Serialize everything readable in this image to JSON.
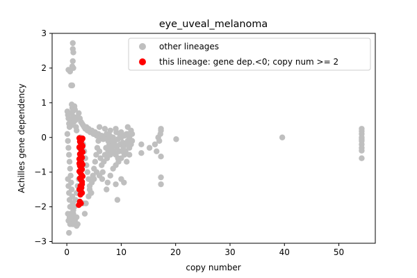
{
  "chart_data": {
    "type": "scatter",
    "title": "eye_uveal_melanoma",
    "xlabel": "copy number",
    "ylabel": "Achilles gene dependency",
    "xlim": [
      -2.7,
      56.7
    ],
    "ylim": [
      -3.05,
      3.0
    ],
    "xticks": [
      0,
      10,
      20,
      30,
      40,
      50
    ],
    "yticks": [
      -3,
      -2,
      -1,
      0,
      1,
      2,
      3
    ],
    "grid": false,
    "legend_position": "top-right",
    "series": [
      {
        "name": "other lineages",
        "color": "#bfbfbf",
        "points": [
          [
            0.3,
            1.95
          ],
          [
            0.6,
            1.9
          ],
          [
            1.0,
            2.05
          ],
          [
            1.1,
            2.2
          ],
          [
            1.2,
            2.0
          ],
          [
            1.1,
            2.55
          ],
          [
            1.2,
            2.45
          ],
          [
            1.1,
            2.72
          ],
          [
            0.8,
            1.5
          ],
          [
            1.0,
            1.5
          ],
          [
            0.1,
            0.75
          ],
          [
            0.2,
            0.65
          ],
          [
            0.3,
            0.55
          ],
          [
            0.4,
            0.4
          ],
          [
            0.5,
            0.3
          ],
          [
            0.6,
            0.7
          ],
          [
            0.7,
            0.5
          ],
          [
            0.8,
            0.35
          ],
          [
            0.9,
            0.95
          ],
          [
            1.0,
            0.85
          ],
          [
            1.1,
            0.75
          ],
          [
            1.2,
            0.6
          ],
          [
            1.3,
            0.45
          ],
          [
            1.4,
            0.9
          ],
          [
            1.5,
            0.8
          ],
          [
            1.6,
            0.5
          ],
          [
            1.7,
            0.3
          ],
          [
            1.8,
            0.2
          ],
          [
            2.0,
            0.6
          ],
          [
            2.2,
            0.7
          ],
          [
            2.4,
            0.55
          ],
          [
            2.6,
            0.45
          ],
          [
            2.8,
            0.4
          ],
          [
            3.0,
            0.35
          ],
          [
            3.2,
            0.3
          ],
          [
            3.4,
            0.25
          ],
          [
            3.6,
            0.3
          ],
          [
            3.8,
            0.2
          ],
          [
            4.0,
            0.25
          ],
          [
            4.3,
            0.15
          ],
          [
            4.6,
            0.2
          ],
          [
            4.9,
            0.1
          ],
          [
            5.2,
            0.15
          ],
          [
            5.5,
            0.05
          ],
          [
            5.8,
            0.1
          ],
          [
            6.1,
            0.0
          ],
          [
            6.4,
            0.05
          ],
          [
            6.7,
            -0.05
          ],
          [
            7.0,
            0.0
          ],
          [
            7.3,
            0.1
          ],
          [
            7.6,
            -0.1
          ],
          [
            7.9,
            0.05
          ],
          [
            8.2,
            -0.05
          ],
          [
            8.5,
            0.0
          ],
          [
            8.8,
            -0.1
          ],
          [
            9.1,
            0.15
          ],
          [
            9.4,
            -0.05
          ],
          [
            9.7,
            0.1
          ],
          [
            10.0,
            0.0
          ],
          [
            10.3,
            -0.15
          ],
          [
            10.6,
            0.05
          ],
          [
            10.9,
            -0.2
          ],
          [
            11.2,
            -0.1
          ],
          [
            11.5,
            0.0
          ],
          [
            8.0,
            0.2
          ],
          [
            9.0,
            0.25
          ],
          [
            10.0,
            0.15
          ],
          [
            11.0,
            0.1
          ],
          [
            6.0,
            0.3
          ],
          [
            7.0,
            0.25
          ],
          [
            0.1,
            0.1
          ],
          [
            0.2,
            -0.1
          ],
          [
            0.3,
            -0.3
          ],
          [
            0.4,
            -0.5
          ],
          [
            0.5,
            -0.7
          ],
          [
            0.6,
            -0.9
          ],
          [
            0.7,
            -1.1
          ],
          [
            0.8,
            -1.3
          ],
          [
            0.9,
            -1.5
          ],
          [
            1.0,
            -1.7
          ],
          [
            1.1,
            -1.9
          ],
          [
            1.2,
            -2.1
          ],
          [
            1.3,
            -2.3
          ],
          [
            0.2,
            -1.2
          ],
          [
            0.3,
            -1.4
          ],
          [
            0.4,
            -1.6
          ],
          [
            0.5,
            -1.8
          ],
          [
            0.6,
            -2.0
          ],
          [
            0.7,
            -2.2
          ],
          [
            0.8,
            -2.4
          ],
          [
            1.0,
            -2.5
          ],
          [
            1.2,
            -2.2
          ],
          [
            1.4,
            -2.0
          ],
          [
            1.6,
            -1.8
          ],
          [
            1.8,
            -1.6
          ],
          [
            2.0,
            -1.4
          ],
          [
            2.2,
            -1.2
          ],
          [
            2.4,
            -1.0
          ],
          [
            2.6,
            -0.8
          ],
          [
            2.8,
            -0.6
          ],
          [
            0.5,
            -2.3
          ],
          [
            0.6,
            -2.5
          ],
          [
            1.2,
            -2.5
          ],
          [
            1.5,
            -2.4
          ],
          [
            1.8,
            -2.3
          ],
          [
            2.0,
            -2.5
          ],
          [
            1.8,
            -2.55
          ],
          [
            0.4,
            -2.75
          ],
          [
            0.3,
            -2.4
          ],
          [
            0.2,
            -2.2
          ],
          [
            3.0,
            -0.2
          ],
          [
            3.2,
            -0.4
          ],
          [
            3.4,
            -0.6
          ],
          [
            3.6,
            -0.8
          ],
          [
            3.8,
            -1.0
          ],
          [
            4.0,
            -1.2
          ],
          [
            4.2,
            -1.4
          ],
          [
            4.4,
            -1.6
          ],
          [
            4.6,
            -1.3
          ],
          [
            4.8,
            -1.1
          ],
          [
            5.0,
            -0.9
          ],
          [
            5.2,
            -0.7
          ],
          [
            5.4,
            -0.5
          ],
          [
            5.6,
            -0.3
          ],
          [
            5.8,
            -0.1
          ],
          [
            6.0,
            -0.4
          ],
          [
            6.2,
            -0.6
          ],
          [
            6.4,
            -0.8
          ],
          [
            6.6,
            -1.0
          ],
          [
            6.8,
            -0.7
          ],
          [
            7.0,
            -0.5
          ],
          [
            7.2,
            -0.3
          ],
          [
            7.4,
            -0.6
          ],
          [
            7.6,
            -0.4
          ],
          [
            7.8,
            -0.2
          ],
          [
            8.0,
            -0.5
          ],
          [
            8.2,
            -0.3
          ],
          [
            8.4,
            -0.1
          ],
          [
            8.6,
            -0.4
          ],
          [
            8.8,
            -0.2
          ],
          [
            9.0,
            -0.5
          ],
          [
            9.2,
            -0.3
          ],
          [
            9.4,
            -0.6
          ],
          [
            9.6,
            -0.4
          ],
          [
            9.8,
            -0.2
          ],
          [
            10.0,
            -0.6
          ],
          [
            10.2,
            -0.4
          ],
          [
            10.4,
            -0.3
          ],
          [
            10.6,
            -0.5
          ],
          [
            10.8,
            -0.4
          ],
          [
            3.5,
            -1.9
          ],
          [
            3.3,
            -2.2
          ],
          [
            3.0,
            -1.9
          ],
          [
            4.0,
            -1.7
          ],
          [
            4.2,
            -1.5
          ],
          [
            4.5,
            -1.6
          ],
          [
            5.0,
            -1.2
          ],
          [
            5.5,
            -1.0
          ],
          [
            6.0,
            -1.1
          ],
          [
            6.5,
            -1.2
          ],
          [
            7.5,
            -1.3
          ],
          [
            9.3,
            -1.8
          ],
          [
            7.3,
            -1.5
          ],
          [
            10.0,
            -1.2
          ],
          [
            10.5,
            -1.3
          ],
          [
            9.0,
            -1.35
          ],
          [
            8.0,
            -1.1
          ],
          [
            8.5,
            -0.9
          ],
          [
            9.0,
            -0.8
          ],
          [
            9.5,
            -0.7
          ],
          [
            11.0,
            -0.7
          ],
          [
            11.5,
            -0.5
          ],
          [
            11.5,
            -0.3
          ],
          [
            11.8,
            0.2
          ],
          [
            11.8,
            -0.2
          ],
          [
            12.0,
            -0.1
          ],
          [
            11.2,
            0.3
          ],
          [
            12.0,
            0.1
          ],
          [
            2.5,
            0.0
          ],
          [
            2.3,
            -0.3
          ],
          [
            13.7,
            -0.2
          ],
          [
            13.7,
            -0.45
          ],
          [
            15.2,
            -0.3
          ],
          [
            16.2,
            -0.2
          ],
          [
            16.5,
            -0.4
          ],
          [
            16.8,
            0.0
          ],
          [
            17.0,
            -0.1
          ],
          [
            17.2,
            0.1
          ],
          [
            17.3,
            0.2
          ],
          [
            17.3,
            0.25
          ],
          [
            17.3,
            -0.55
          ],
          [
            17.3,
            -1.15
          ],
          [
            17.3,
            -1.35
          ],
          [
            20.1,
            -0.05
          ],
          [
            39.6,
            0.0
          ],
          [
            54.2,
            0.25
          ],
          [
            54.2,
            0.18
          ],
          [
            54.2,
            0.1
          ],
          [
            54.2,
            0.0
          ],
          [
            54.2,
            -0.05
          ],
          [
            54.2,
            -0.3
          ],
          [
            54.2,
            -0.38
          ],
          [
            54.2,
            -0.6
          ],
          [
            54.2,
            -0.1
          ],
          [
            54.2,
            -0.2
          ]
        ]
      },
      {
        "name": "this lineage: gene dep.<0; copy num >= 2",
        "color": "#ff0000",
        "points": [
          [
            2.3,
            -0.02
          ],
          [
            2.5,
            -0.05
          ],
          [
            2.7,
            -0.08
          ],
          [
            2.9,
            -0.03
          ],
          [
            2.4,
            -0.12
          ],
          [
            2.6,
            -0.18
          ],
          [
            2.8,
            -0.22
          ],
          [
            2.3,
            -0.28
          ],
          [
            2.5,
            -0.32
          ],
          [
            2.7,
            -0.38
          ],
          [
            2.9,
            -0.42
          ],
          [
            2.4,
            -0.48
          ],
          [
            2.6,
            -0.52
          ],
          [
            2.8,
            -0.58
          ],
          [
            2.3,
            -0.62
          ],
          [
            2.5,
            -0.68
          ],
          [
            2.7,
            -0.72
          ],
          [
            2.9,
            -0.78
          ],
          [
            2.4,
            -0.82
          ],
          [
            2.6,
            -0.88
          ],
          [
            2.8,
            -0.92
          ],
          [
            2.3,
            -0.98
          ],
          [
            2.5,
            -1.02
          ],
          [
            2.7,
            -1.08
          ],
          [
            2.9,
            -1.12
          ],
          [
            2.4,
            -1.18
          ],
          [
            2.6,
            -1.22
          ],
          [
            2.8,
            -1.28
          ],
          [
            2.5,
            -1.4
          ],
          [
            2.7,
            -1.45
          ],
          [
            2.3,
            -1.5
          ],
          [
            2.6,
            -1.55
          ],
          [
            2.8,
            -1.6
          ],
          [
            2.5,
            -1.65
          ],
          [
            2.4,
            -1.85
          ],
          [
            2.6,
            -1.9
          ],
          [
            2.2,
            -1.95
          ],
          [
            2.8,
            -1.35
          ],
          [
            2.9,
            -0.25
          ],
          [
            2.3,
            -0.75
          ]
        ]
      }
    ]
  }
}
